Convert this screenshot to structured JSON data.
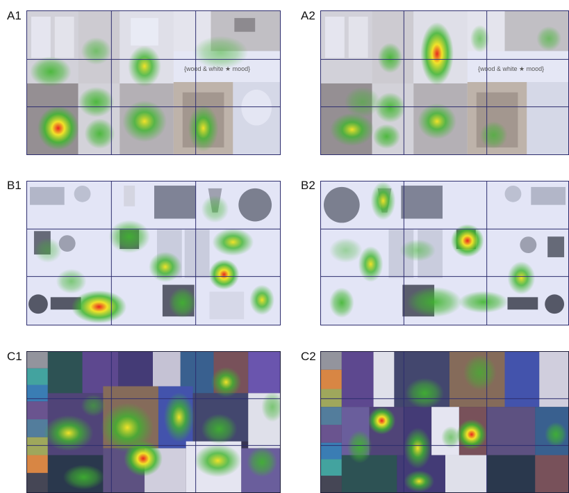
{
  "panels": {
    "a1": {
      "label": "A1",
      "caption": "{wood & white  ★  mood}"
    },
    "a2": {
      "label": "A2",
      "caption": "{wood & white  ★  mood}"
    },
    "b1": {
      "label": "B1"
    },
    "b2": {
      "label": "B2"
    },
    "c1": {
      "label": "C1"
    },
    "c2": {
      "label": "C2"
    }
  },
  "colors": {
    "grid_line": "#2c2c6e",
    "heat_red": "#e8261e",
    "heat_yellow": "#f2e22a",
    "heat_green": "#3fb52e",
    "haze": "#c9cdf0"
  }
}
